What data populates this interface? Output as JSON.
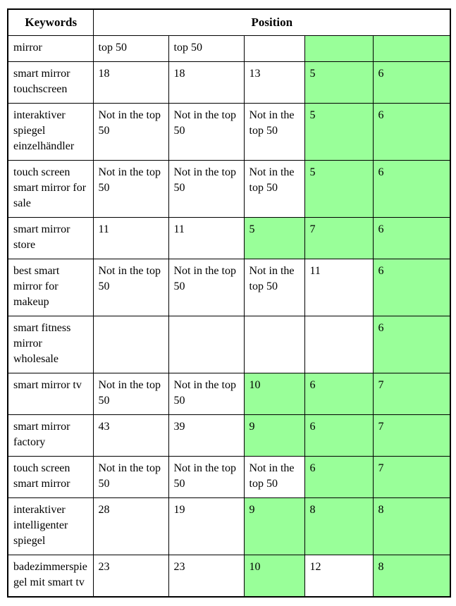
{
  "table": {
    "highlight_color": "#99ff99",
    "header": {
      "keywords": "Keywords",
      "position": "Position"
    },
    "rows": [
      {
        "keyword": "mirror",
        "positions": [
          {
            "v": "top 50",
            "hl": false
          },
          {
            "v": "top 50",
            "hl": false
          },
          {
            "v": "",
            "hl": false
          },
          {
            "v": "",
            "hl": true
          },
          {
            "v": "",
            "hl": true
          }
        ]
      },
      {
        "keyword": "smart mirror touchscreen",
        "positions": [
          {
            "v": "18",
            "hl": false
          },
          {
            "v": "18",
            "hl": false
          },
          {
            "v": "13",
            "hl": false
          },
          {
            "v": "5",
            "hl": true
          },
          {
            "v": "6",
            "hl": true
          }
        ]
      },
      {
        "keyword": "interaktiver spiegel einzelhändler",
        "positions": [
          {
            "v": "Not in the top 50",
            "hl": false
          },
          {
            "v": "Not in the top 50",
            "hl": false
          },
          {
            "v": "Not in the top 50",
            "hl": false
          },
          {
            "v": "5",
            "hl": true
          },
          {
            "v": "6",
            "hl": true
          }
        ]
      },
      {
        "keyword": "touch screen smart mirror for sale",
        "positions": [
          {
            "v": "Not in the top 50",
            "hl": false
          },
          {
            "v": "Not in the top 50",
            "hl": false
          },
          {
            "v": "Not in the top 50",
            "hl": false
          },
          {
            "v": "5",
            "hl": true
          },
          {
            "v": "6",
            "hl": true
          }
        ]
      },
      {
        "keyword": "smart mirror store",
        "positions": [
          {
            "v": "11",
            "hl": false
          },
          {
            "v": "11",
            "hl": false
          },
          {
            "v": "5",
            "hl": true
          },
          {
            "v": "7",
            "hl": true
          },
          {
            "v": "6",
            "hl": true
          }
        ]
      },
      {
        "keyword": "best smart mirror for makeup",
        "positions": [
          {
            "v": "Not in the top 50",
            "hl": false
          },
          {
            "v": "Not in the top 50",
            "hl": false
          },
          {
            "v": "Not in the top 50",
            "hl": false
          },
          {
            "v": "11",
            "hl": false
          },
          {
            "v": "6",
            "hl": true
          }
        ]
      },
      {
        "keyword": "smart fitness mirror wholesale",
        "positions": [
          {
            "v": "",
            "hl": false
          },
          {
            "v": "",
            "hl": false
          },
          {
            "v": "",
            "hl": false
          },
          {
            "v": "",
            "hl": false
          },
          {
            "v": "6",
            "hl": true
          }
        ]
      },
      {
        "keyword": "smart mirror tv",
        "positions": [
          {
            "v": "Not in the top 50",
            "hl": false
          },
          {
            "v": "Not in the top 50",
            "hl": false
          },
          {
            "v": "10",
            "hl": true
          },
          {
            "v": "6",
            "hl": true
          },
          {
            "v": "7",
            "hl": true
          }
        ]
      },
      {
        "keyword": "smart mirror factory",
        "positions": [
          {
            "v": "43",
            "hl": false
          },
          {
            "v": "39",
            "hl": false
          },
          {
            "v": "9",
            "hl": true
          },
          {
            "v": "6",
            "hl": true
          },
          {
            "v": "7",
            "hl": true
          }
        ]
      },
      {
        "keyword": "touch screen smart mirror",
        "positions": [
          {
            "v": "Not in the top 50",
            "hl": false
          },
          {
            "v": "Not in the top 50",
            "hl": false
          },
          {
            "v": "Not in the top 50",
            "hl": false
          },
          {
            "v": "6",
            "hl": true
          },
          {
            "v": "7",
            "hl": true
          }
        ]
      },
      {
        "keyword": "interaktiver intelligenter spiegel",
        "positions": [
          {
            "v": "28",
            "hl": false
          },
          {
            "v": "19",
            "hl": false
          },
          {
            "v": "9",
            "hl": true
          },
          {
            "v": "8",
            "hl": true
          },
          {
            "v": "8",
            "hl": true
          }
        ]
      },
      {
        "keyword": "badezimmerspiegel mit smart tv",
        "positions": [
          {
            "v": "23",
            "hl": false
          },
          {
            "v": "23",
            "hl": false
          },
          {
            "v": "10",
            "hl": true
          },
          {
            "v": "12",
            "hl": false
          },
          {
            "v": "8",
            "hl": true
          }
        ]
      }
    ]
  }
}
